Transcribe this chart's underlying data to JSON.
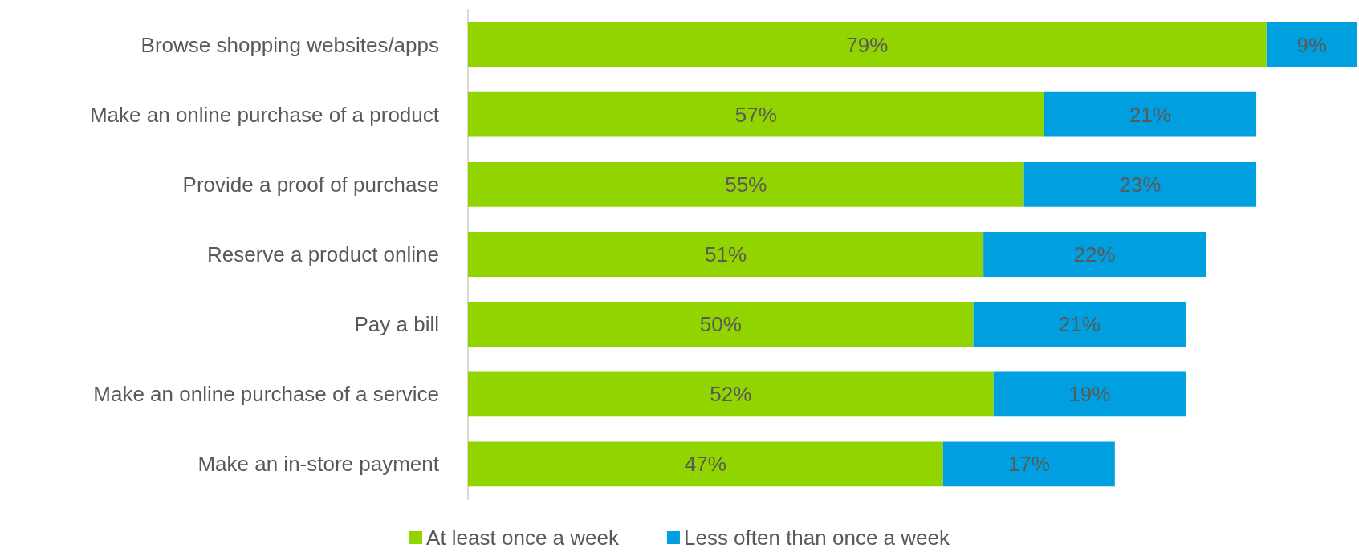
{
  "chart_data": {
    "type": "bar",
    "orientation": "horizontal",
    "stacked": true,
    "legend": "bottom",
    "categories": [
      "Browse shopping websites/apps",
      "Make an online purchase of a product",
      "Provide a proof of purchase",
      "Reserve a product online",
      "Pay a bill",
      "Make an online purchase of a service",
      "Make an in-store payment"
    ],
    "series": [
      {
        "name": "At least once a week",
        "color": "#92d400",
        "values": [
          79,
          57,
          55,
          51,
          50,
          52,
          47
        ],
        "value_labels": [
          "79%",
          "57%",
          "55%",
          "51%",
          "50%",
          "52%",
          "47%"
        ]
      },
      {
        "name": "Less often than once a week",
        "color": "#00a0e0",
        "values": [
          9,
          21,
          23,
          22,
          21,
          19,
          17
        ],
        "value_labels": [
          "9%",
          "21%",
          "23%",
          "22%",
          "21%",
          "19%",
          "17%"
        ]
      }
    ]
  }
}
